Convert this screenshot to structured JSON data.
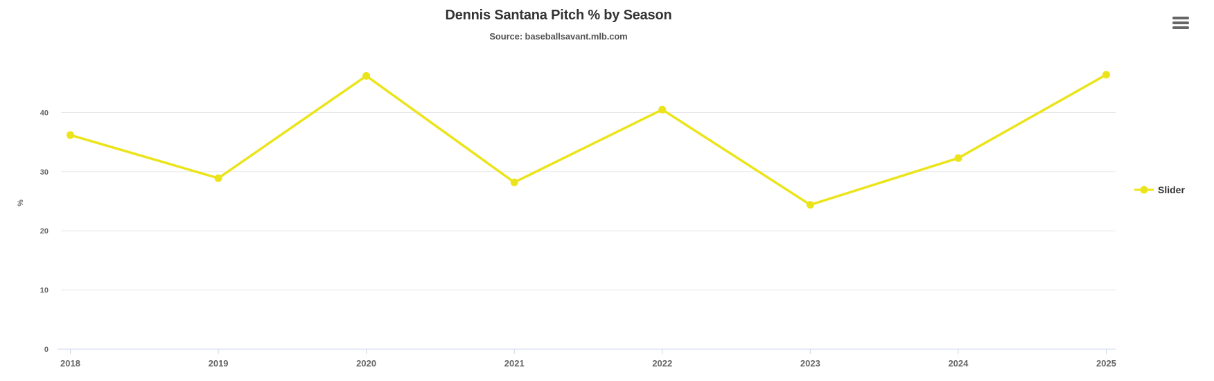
{
  "chart_data": {
    "type": "line",
    "title": "Dennis Santana Pitch % by Season",
    "subtitle": "Source: baseballsavant.mlb.com",
    "categories": [
      "2018",
      "2019",
      "2020",
      "2021",
      "2022",
      "2023",
      "2024",
      "2025"
    ],
    "series": [
      {
        "name": "Slider",
        "color": "#ebe41a",
        "values": [
          36.2,
          28.9,
          46.2,
          28.2,
          40.5,
          24.4,
          32.3,
          46.4
        ]
      }
    ],
    "xlabel": "",
    "ylabel": "%",
    "yticks": [
      0,
      10,
      20,
      30,
      40
    ],
    "ylim": [
      0,
      51.3
    ],
    "grid": true,
    "legend_position": "right",
    "colors": {
      "grid": "#e6e6e6",
      "axis_line": "#ccd6eb",
      "tick_label": "#666666",
      "title": "#333333",
      "subtitle": "#555555",
      "legend_text": "#333333"
    }
  },
  "menu": {
    "icon": "hamburger-menu-icon"
  }
}
